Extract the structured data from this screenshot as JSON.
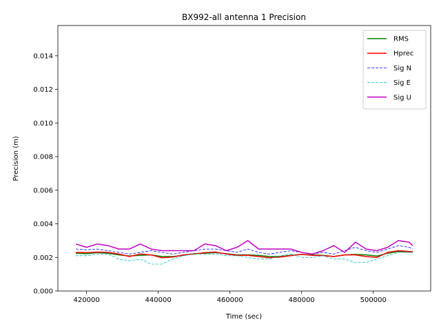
{
  "chart_data": {
    "type": "line",
    "title": "BX992-all antenna 1 Precision",
    "xlabel": "Time (sec)",
    "ylabel": "Precision (m)",
    "xlim": [
      412000,
      516000
    ],
    "ylim": [
      0,
      0.0158
    ],
    "x_ticks": [
      420000,
      440000,
      460000,
      480000,
      500000
    ],
    "x_tick_labels": [
      "420000",
      "440000",
      "460000",
      "480000",
      "500000"
    ],
    "y_ticks": [
      0,
      0.002,
      0.004,
      0.006,
      0.008,
      0.01,
      0.012,
      0.014
    ],
    "y_tick_labels": [
      "0.000",
      "0.002",
      "0.004",
      "0.006",
      "0.008",
      "0.010",
      "0.012",
      "0.014"
    ],
    "grid": false,
    "legend_position": "top-right",
    "x": [
      417000,
      420000,
      423000,
      426000,
      429000,
      432000,
      435000,
      438000,
      441000,
      444000,
      447000,
      450000,
      453000,
      456000,
      459000,
      462000,
      465000,
      468000,
      471000,
      474000,
      477000,
      480000,
      483000,
      486000,
      489000,
      492000,
      495000,
      498000,
      501000,
      504000,
      507000,
      510000,
      511000
    ],
    "series": [
      {
        "name": "RMS",
        "color": "#008000",
        "dash": "solid",
        "width": 1.5,
        "values": [
          0.00225,
          0.00222,
          0.00228,
          0.00225,
          0.00215,
          0.00208,
          0.00212,
          0.00215,
          0.00205,
          0.00205,
          0.00212,
          0.00222,
          0.00225,
          0.00228,
          0.00222,
          0.00215,
          0.00215,
          0.00212,
          0.00205,
          0.00205,
          0.00212,
          0.00218,
          0.00215,
          0.00212,
          0.00205,
          0.00215,
          0.00218,
          0.00215,
          0.00208,
          0.00225,
          0.00235,
          0.00232,
          0.00232
        ]
      },
      {
        "name": "Hprec",
        "color": "#ff0000",
        "dash": "solid",
        "width": 1.5,
        "values": [
          0.0023,
          0.00228,
          0.00232,
          0.0023,
          0.0022,
          0.00205,
          0.0022,
          0.00215,
          0.00198,
          0.00202,
          0.00215,
          0.0022,
          0.00228,
          0.00232,
          0.0022,
          0.00212,
          0.00212,
          0.00205,
          0.00198,
          0.00202,
          0.0021,
          0.00218,
          0.00212,
          0.0021,
          0.00205,
          0.00215,
          0.00215,
          0.00205,
          0.002,
          0.0023,
          0.0024,
          0.00235,
          0.00235
        ]
      },
      {
        "name": "Sig N",
        "color": "#0000ff",
        "dash": "dashed",
        "width": 0.8,
        "values": [
          0.0025,
          0.00245,
          0.0025,
          0.0024,
          0.0023,
          0.0022,
          0.0023,
          0.0024,
          0.0023,
          0.0022,
          0.0023,
          0.0024,
          0.0025,
          0.0025,
          0.0024,
          0.0023,
          0.0025,
          0.0023,
          0.0022,
          0.0023,
          0.0024,
          0.0023,
          0.0022,
          0.0023,
          0.0022,
          0.0024,
          0.0026,
          0.0024,
          0.0023,
          0.0025,
          0.0027,
          0.0026,
          0.0025
        ]
      },
      {
        "name": "Sig E",
        "color": "#00bfbf",
        "dash": "dashed",
        "width": 0.8,
        "values": [
          0.0021,
          0.0021,
          0.0022,
          0.0022,
          0.0019,
          0.0018,
          0.0019,
          0.0016,
          0.0016,
          0.0019,
          0.0021,
          0.0022,
          0.0022,
          0.0022,
          0.0021,
          0.0021,
          0.002,
          0.0019,
          0.0019,
          0.0021,
          0.0022,
          0.002,
          0.002,
          0.0021,
          0.0019,
          0.0019,
          0.0017,
          0.0017,
          0.0019,
          0.0021,
          0.0023,
          0.0023,
          0.0023
        ]
      },
      {
        "name": "Sig U",
        "color": "#bf00bf",
        "dash": "solid",
        "width": 1.5,
        "values": [
          0.0028,
          0.0026,
          0.0028,
          0.0027,
          0.0025,
          0.0025,
          0.0028,
          0.0025,
          0.0024,
          0.0024,
          0.0024,
          0.0024,
          0.0028,
          0.0027,
          0.0024,
          0.0026,
          0.003,
          0.0025,
          0.0025,
          0.0025,
          0.0025,
          0.0023,
          0.0022,
          0.0024,
          0.0027,
          0.0023,
          0.0029,
          0.0025,
          0.0024,
          0.0026,
          0.003,
          0.0029,
          0.0027
        ]
      }
    ]
  }
}
